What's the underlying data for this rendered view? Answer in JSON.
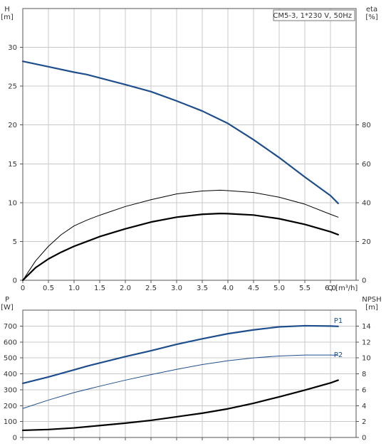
{
  "chart_data": [
    {
      "type": "line",
      "title": "CM5-3, 1*230 V, 50Hz",
      "xlabel": "Q [m³/h]",
      "xlim": [
        0,
        6.5
      ],
      "xticks": [
        0,
        0.5,
        1.0,
        1.5,
        2.0,
        2.5,
        3.0,
        3.5,
        4.0,
        4.5,
        5.0,
        5.5,
        6.0
      ],
      "xtick_labels": [
        "0",
        "0.5",
        "1.0",
        "1.5",
        "2.0",
        "2.5",
        "3.0",
        "3.5",
        "4.0",
        "4.5",
        "5.0",
        "5.5",
        "6.0"
      ],
      "ylabel_left": "H\n[m]",
      "ylim_left": [
        0,
        35
      ],
      "yticks_left": [
        0,
        5,
        10,
        15,
        20,
        25,
        30
      ],
      "ylabel_right": "eta\n[%]",
      "ylim_right": [
        0,
        140
      ],
      "yticks_right": [
        0,
        20,
        40,
        60,
        80
      ],
      "grid": true,
      "series": [
        {
          "axis": "left",
          "color": "#1f4e8c",
          "style": "bold-blue",
          "x": [
            0,
            0.5,
            1.0,
            1.25,
            2.0,
            2.5,
            3.0,
            3.5,
            4.0,
            4.5,
            5.0,
            5.5,
            6.0,
            6.15
          ],
          "y": [
            28.2,
            27.5,
            26.8,
            26.5,
            25.2,
            24.3,
            23.1,
            21.8,
            20.2,
            18.1,
            15.8,
            13.3,
            10.9,
            9.9
          ]
        },
        {
          "axis": "right",
          "color": "#000000",
          "style": "thin-black",
          "x": [
            0,
            0.25,
            0.5,
            0.75,
            1.0,
            1.25,
            1.5,
            2.0,
            2.5,
            3.0,
            3.5,
            3.85,
            4.0,
            4.5,
            5.0,
            5.5,
            6.0,
            6.15
          ],
          "y": [
            0,
            10,
            17.5,
            23.5,
            28,
            31,
            33.5,
            38,
            41.5,
            44.5,
            46,
            46.4,
            46.2,
            45.2,
            42.8,
            39.2,
            34,
            32.5
          ]
        },
        {
          "axis": "right",
          "color": "#000000",
          "style": "bold-black",
          "x": [
            0,
            0.25,
            0.5,
            0.75,
            1.0,
            1.25,
            1.5,
            2.0,
            2.5,
            3.0,
            3.5,
            3.85,
            4.0,
            4.5,
            5.0,
            5.5,
            6.0,
            6.15
          ],
          "y": [
            0,
            6.5,
            11,
            14.5,
            17.5,
            20,
            22.5,
            26.5,
            30,
            32.5,
            34,
            34.4,
            34.3,
            33.6,
            31.7,
            28.8,
            25,
            23.5
          ]
        }
      ]
    },
    {
      "type": "line",
      "ylabel_left": "P\n[W]",
      "ylim_left": [
        0,
        800
      ],
      "yticks_left": [
        0,
        100,
        200,
        300,
        400,
        500,
        600,
        700
      ],
      "ylabel_right": "NPSH\n[m]",
      "ylim_right": [
        0,
        16
      ],
      "yticks_right": [
        0,
        2,
        4,
        6,
        8,
        10,
        12,
        14
      ],
      "xlim": [
        0,
        6.5
      ],
      "grid": true,
      "series": [
        {
          "name": "P1",
          "axis": "left",
          "color": "#1f4e8c",
          "style": "bold-blue",
          "x": [
            0,
            0.5,
            1.0,
            1.25,
            2.0,
            2.5,
            3.0,
            3.5,
            4.0,
            4.5,
            5.0,
            5.5,
            6.0,
            6.15
          ],
          "y": [
            340,
            380,
            425,
            448,
            508,
            545,
            585,
            620,
            652,
            676,
            695,
            702,
            700,
            698
          ]
        },
        {
          "name": "P2",
          "axis": "left",
          "color": "#1f4e8c",
          "style": "thin-blue",
          "x": [
            0,
            0.5,
            1.0,
            1.5,
            2.0,
            2.5,
            3.0,
            3.5,
            4.0,
            4.5,
            5.0,
            5.5,
            6.0,
            6.15
          ],
          "y": [
            182,
            235,
            282,
            322,
            360,
            395,
            428,
            458,
            482,
            500,
            512,
            518,
            518,
            517
          ]
        },
        {
          "axis": "right",
          "color": "#000000",
          "style": "bold-black",
          "x": [
            0,
            0.5,
            1.0,
            1.5,
            2.0,
            2.5,
            3.0,
            3.5,
            4.0,
            4.5,
            5.0,
            5.5,
            6.0,
            6.15
          ],
          "y": [
            0.9,
            1.0,
            1.2,
            1.5,
            1.8,
            2.15,
            2.6,
            3.05,
            3.6,
            4.3,
            5.1,
            5.95,
            6.85,
            7.2
          ]
        }
      ],
      "annotations": [
        {
          "text": "P1",
          "x": 6.15,
          "y": 710,
          "axis": "left"
        },
        {
          "text": "P2",
          "x": 6.15,
          "y": 495,
          "axis": "left"
        }
      ]
    }
  ]
}
